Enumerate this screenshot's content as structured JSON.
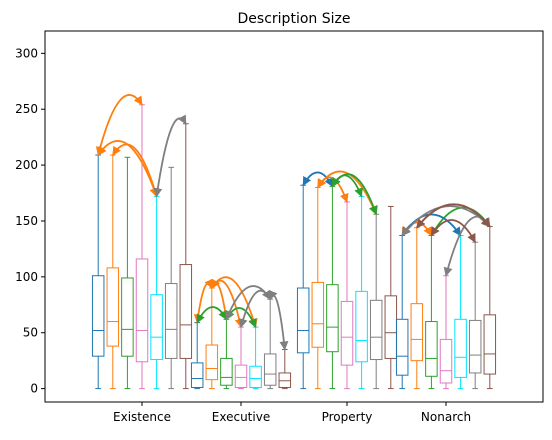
{
  "chart_data": {
    "type": "box",
    "title": "Description Size",
    "xlabel": "",
    "ylabel": "",
    "ylim": [
      -12,
      320
    ],
    "yticks": [
      0,
      50,
      100,
      150,
      200,
      250,
      300
    ],
    "categories": [
      "Existence",
      "Executive",
      "Property",
      "Nonarch"
    ],
    "legend": "none",
    "grid": false,
    "colors": [
      "#1f77b4",
      "#ff7f0e",
      "#2ca02c",
      "#e377c2",
      "#00e5ff",
      "#7f7f7f",
      "#8c564b"
    ],
    "groups": [
      {
        "category": "Existence",
        "boxes": [
          {
            "min": 0,
            "q1": 29,
            "median": 52,
            "q3": 101,
            "max": 209
          },
          {
            "min": 0,
            "q1": 38,
            "median": 60,
            "q3": 108,
            "max": 209
          },
          {
            "min": 0,
            "q1": 29,
            "median": 53,
            "q3": 99,
            "max": 207
          },
          {
            "min": 0,
            "q1": 24,
            "median": 52,
            "q3": 116,
            "max": 254
          },
          {
            "min": 0,
            "q1": 26,
            "median": 46,
            "q3": 84,
            "max": 172
          },
          {
            "min": 0,
            "q1": 27,
            "median": 53,
            "q3": 94,
            "max": 198
          },
          {
            "min": 0,
            "q1": 27,
            "median": 57,
            "q3": 111,
            "max": 237
          }
        ]
      },
      {
        "category": "Executive",
        "boxes": [
          {
            "min": 0,
            "q1": 1,
            "median": 9,
            "q3": 23,
            "max": 59
          },
          {
            "min": 0,
            "q1": 8,
            "median": 18,
            "q3": 39,
            "max": 90
          },
          {
            "min": 0,
            "q1": 3,
            "median": 10,
            "q3": 27,
            "max": 62
          },
          {
            "min": 0,
            "q1": 1,
            "median": 10,
            "q3": 21,
            "max": 55
          },
          {
            "min": 0,
            "q1": 1,
            "median": 9,
            "q3": 20,
            "max": 55
          },
          {
            "min": 0,
            "q1": 3,
            "median": 13,
            "q3": 31,
            "max": 80
          },
          {
            "min": 0,
            "q1": 1,
            "median": 7,
            "q3": 14,
            "max": 35
          }
        ]
      },
      {
        "category": "Property",
        "boxes": [
          {
            "min": 0,
            "q1": 32,
            "median": 52,
            "q3": 90,
            "max": 182
          },
          {
            "min": 0,
            "q1": 37,
            "median": 58,
            "q3": 95,
            "max": 180
          },
          {
            "min": 0,
            "q1": 33,
            "median": 55,
            "q3": 93,
            "max": 181
          },
          {
            "min": 0,
            "q1": 21,
            "median": 46,
            "q3": 78,
            "max": 167
          },
          {
            "min": 0,
            "q1": 24,
            "median": 43,
            "q3": 87,
            "max": 172
          },
          {
            "min": 0,
            "q1": 26,
            "median": 46,
            "q3": 79,
            "max": 156
          },
          {
            "min": 0,
            "q1": 27,
            "median": 50,
            "q3": 83,
            "max": 163
          }
        ]
      },
      {
        "category": "Nonarch",
        "boxes": [
          {
            "min": 0,
            "q1": 12,
            "median": 29,
            "q3": 62,
            "max": 137
          },
          {
            "min": 0,
            "q1": 25,
            "median": 44,
            "q3": 76,
            "max": 144
          },
          {
            "min": 0,
            "q1": 11,
            "median": 27,
            "q3": 60,
            "max": 137
          },
          {
            "min": 0,
            "q1": 5,
            "median": 16,
            "q3": 44,
            "max": 101
          },
          {
            "min": 0,
            "q1": 10,
            "median": 28,
            "q3": 62,
            "max": 137
          },
          {
            "min": 0,
            "q1": 14,
            "median": 30,
            "q3": 61,
            "max": 131
          },
          {
            "min": 0,
            "q1": 13,
            "median": 31,
            "q3": 66,
            "max": 145
          }
        ]
      }
    ],
    "annotations": [
      {
        "group": 0,
        "from": 0,
        "to": 3,
        "color": "#ff7f0e"
      },
      {
        "group": 0,
        "from": 0,
        "to": 4,
        "color": "#ff7f0e"
      },
      {
        "group": 0,
        "from": 1,
        "to": 4,
        "color": "#ff7f0e"
      },
      {
        "group": 0,
        "from": 6,
        "to": 4,
        "color": "#7f7f7f"
      },
      {
        "group": 1,
        "from": 1,
        "to": 0,
        "color": "#ff7f0e"
      },
      {
        "group": 1,
        "from": 1,
        "to": 2,
        "color": "#ff7f0e"
      },
      {
        "group": 1,
        "from": 1,
        "to": 3,
        "color": "#ff7f0e"
      },
      {
        "group": 1,
        "from": 1,
        "to": 4,
        "color": "#ff7f0e"
      },
      {
        "group": 1,
        "from": 0,
        "to": 2,
        "color": "#2ca02c"
      },
      {
        "group": 1,
        "from": 2,
        "to": 4,
        "color": "#2ca02c"
      },
      {
        "group": 1,
        "from": 5,
        "to": 2,
        "color": "#7f7f7f"
      },
      {
        "group": 1,
        "from": 5,
        "to": 3,
        "color": "#7f7f7f"
      },
      {
        "group": 1,
        "from": 5,
        "to": 6,
        "color": "#7f7f7f"
      },
      {
        "group": 2,
        "from": 0,
        "to": 2,
        "color": "#1f77b4"
      },
      {
        "group": 2,
        "from": 1,
        "to": 3,
        "color": "#ff7f0e"
      },
      {
        "group": 2,
        "from": 1,
        "to": 5,
        "color": "#ff7f0e"
      },
      {
        "group": 2,
        "from": 2,
        "to": 4,
        "color": "#2ca02c"
      },
      {
        "group": 2,
        "from": 2,
        "to": 5,
        "color": "#2ca02c"
      },
      {
        "group": 3,
        "from": 0,
        "to": 2,
        "color": "#ff7f0e"
      },
      {
        "group": 3,
        "from": 1,
        "to": 6,
        "color": "#ff7f0e"
      },
      {
        "group": 3,
        "from": 2,
        "to": 6,
        "color": "#2ca02c"
      },
      {
        "group": 3,
        "from": 0,
        "to": 4,
        "color": "#1f77b4"
      },
      {
        "group": 3,
        "from": 6,
        "to": 3,
        "color": "#7f7f7f"
      },
      {
        "group": 3,
        "from": 6,
        "to": 0,
        "color": "#7f7f7f"
      },
      {
        "group": 3,
        "from": 6,
        "to": 1,
        "color": "#8c564b"
      },
      {
        "group": 3,
        "from": 5,
        "to": 2,
        "color": "#8c564b"
      }
    ]
  }
}
